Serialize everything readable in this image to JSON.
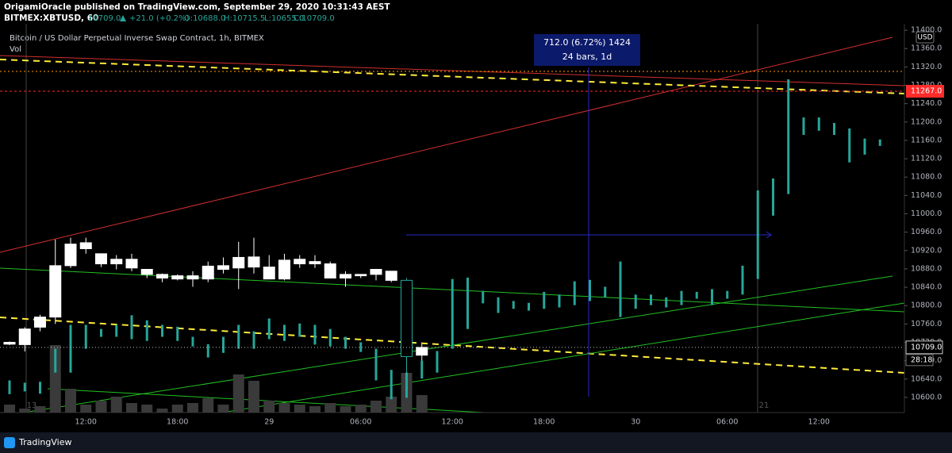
{
  "header": {
    "publisher": "OrigamiOracle published on TradingView.com, September 29, 2020 10:31:43 AEST",
    "symbol": "BITMEX:XBTUSD, 60",
    "last": "10709.0",
    "change": "+21.0 (+0.2%)",
    "ohlc": [
      "O:10688.0",
      "H:10715.5",
      "L:10655.0",
      "C:10709.0"
    ]
  },
  "footer": {
    "brand": "TradingView"
  },
  "chart_data": {
    "type": "candlestick",
    "title": "Bitcoin / US Dollar Perpetual Inverse Swap Contract, 1h, BITMEX",
    "subtitle": "Vol",
    "categories": [
      null,
      null,
      null,
      null,
      null,
      "12:00",
      null,
      null,
      null,
      null,
      null,
      "18:00",
      null,
      null,
      null,
      null,
      null,
      "29",
      null,
      null,
      null,
      null,
      null,
      "06:00",
      null,
      null,
      null,
      null,
      null,
      "12:00",
      null,
      null,
      null,
      null,
      null,
      "18:00",
      null,
      null,
      null,
      null,
      null,
      "30",
      null,
      null,
      null,
      null,
      null,
      "06:00",
      null,
      null,
      null,
      null,
      null,
      "12:00",
      null,
      null,
      null,
      null
    ],
    "candles": {
      "color_up": "#ffffff",
      "color_down": "#26a69a",
      "open": [
        10716,
        10715,
        10753,
        10775,
        10887,
        10924,
        10891,
        10891,
        10882,
        10868,
        10860,
        10858,
        10858,
        10858,
        10879,
        10882,
        10884,
        10858,
        10858,
        10891,
        10891,
        10860,
        10860,
        10865,
        10868,
        10855,
        10855,
        10692
      ],
      "high": [
        10722,
        10753,
        10780,
        10944,
        10948,
        10948,
        10913,
        10910,
        10913,
        10879,
        10870,
        10868,
        10875,
        10896,
        10905,
        10939,
        10948,
        10910,
        10913,
        10910,
        10910,
        10896,
        10875,
        10868,
        10879,
        10875,
        10860,
        10716
      ],
      "low": [
        10714,
        10700,
        10744,
        10760,
        10882,
        10913,
        10884,
        10879,
        10875,
        10860,
        10851,
        10855,
        10841,
        10851,
        10870,
        10836,
        10870,
        10858,
        10855,
        10882,
        10882,
        10860,
        10841,
        10860,
        10855,
        10851,
        10603,
        10680
      ],
      "close": [
        10720,
        10749,
        10775,
        10887,
        10934,
        10937,
        10913,
        10901,
        10901,
        10879,
        10868,
        10865,
        10865,
        10886,
        10887,
        10905,
        10906,
        10884,
        10899,
        10901,
        10896,
        10891,
        10868,
        10868,
        10879,
        10875,
        10689,
        10709
      ]
    },
    "overlay": {
      "color": "#26a69a",
      "high": [
        10637,
        10632,
        10634,
        10706,
        10758,
        10758,
        10749,
        10758,
        10779,
        10768,
        10758,
        10754,
        10732,
        10716,
        10732,
        10758,
        10744,
        10772,
        10758,
        10761,
        10758,
        10749,
        10732,
        10720,
        10706,
        10660,
        10654,
        10680,
        10701,
        10858,
        10861,
        10832,
        10818,
        10810,
        10806,
        10830,
        10824,
        10853,
        10856,
        10841,
        10896,
        10824,
        10824,
        10818,
        10832,
        10830,
        10836,
        10832,
        10887,
        11051,
        11077,
        11293,
        11210,
        11210,
        11198,
        11186,
        11164,
        11162
      ],
      "low": [
        10607,
        10613,
        10608,
        10654,
        10654,
        10706,
        10732,
        10732,
        10727,
        10723,
        10732,
        10723,
        10711,
        10687,
        10697,
        10706,
        10706,
        10727,
        10723,
        10732,
        10715,
        10711,
        10706,
        10699,
        10637,
        10596,
        10599,
        10641,
        10654,
        10706,
        10749,
        10805,
        10784,
        10793,
        10789,
        10793,
        10796,
        10801,
        10810,
        10818,
        10775,
        10793,
        10801,
        10796,
        10801,
        10815,
        10801,
        10815,
        10824,
        10858,
        10996,
        11043,
        11172,
        11181,
        11172,
        11112,
        11129,
        11148
      ]
    },
    "volume": {
      "color": "#3a3a3a",
      "vlim": [
        0,
        100
      ],
      "values": [
        10,
        5,
        8,
        85,
        30,
        10,
        15,
        20,
        12,
        10,
        5,
        10,
        12,
        18,
        10,
        48,
        40,
        15,
        12,
        10,
        8,
        12,
        8,
        10,
        15,
        20,
        50,
        22
      ]
    },
    "ylim": [
      10567,
      11414
    ],
    "yticks": [
      {
        "value": 10600,
        "label": "10600.0"
      },
      {
        "value": 10640,
        "label": "10640.0"
      },
      {
        "value": 10680,
        "label": "10680.0"
      },
      {
        "value": 10720,
        "label": "10720.0"
      },
      {
        "value": 10760,
        "label": "10760.0"
      },
      {
        "value": 10800,
        "label": "10800.0"
      },
      {
        "value": 10840,
        "label": "10840.0"
      },
      {
        "value": 10880,
        "label": "10880.0"
      },
      {
        "value": 10920,
        "label": "10920.0"
      },
      {
        "value": 10960,
        "label": "10960.0"
      },
      {
        "value": 11000,
        "label": "11000.0"
      },
      {
        "value": 11040,
        "label": "11040.0"
      },
      {
        "value": 11080,
        "label": "11080.0"
      },
      {
        "value": 11120,
        "label": "11120.0"
      },
      {
        "value": 11160,
        "label": "11160.0"
      },
      {
        "value": 11200,
        "label": "11200.0"
      },
      {
        "value": 11240,
        "label": "11240.0"
      },
      {
        "value": 11280,
        "label": "11280.0"
      },
      {
        "value": 11320,
        "label": "11320.0"
      },
      {
        "value": 11360,
        "label": "11360.0"
      },
      {
        "value": 11400,
        "label": "11400.0"
      }
    ],
    "last_price": {
      "value": 10709,
      "label": "10709.0"
    },
    "countdown": "28:18",
    "level": {
      "value": 11267,
      "label": "11267.0",
      "color": "#ff2a2a"
    },
    "currency": "USD",
    "measure": {
      "line1": "712.0 (6.72%) 1424",
      "line2": "24 bars, 1d"
    },
    "markers": [
      "13",
      "21"
    ]
  }
}
